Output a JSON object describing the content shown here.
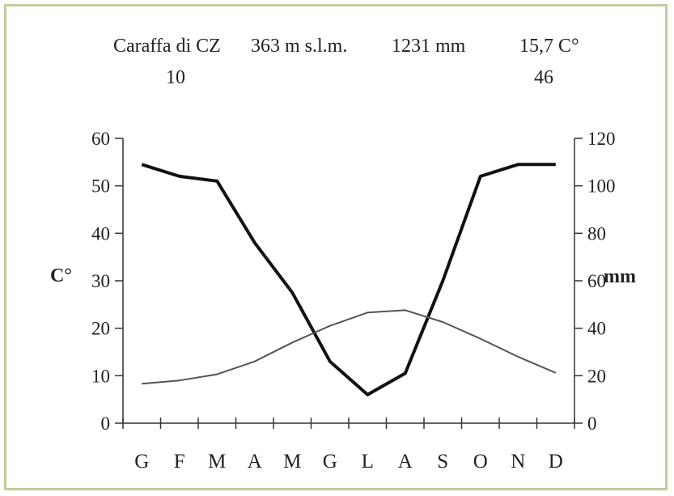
{
  "chart_data": {
    "type": "line",
    "title_line1": {
      "station": "Caraffa di CZ",
      "altitude": "363 m s.l.m.",
      "precip_total": "1231 mm",
      "temp_mean": "15,7 C°"
    },
    "title_line2": {
      "left": "10",
      "right": "46"
    },
    "categories": [
      "G",
      "F",
      "M",
      "A",
      "M",
      "G",
      "L",
      "A",
      "S",
      "O",
      "N",
      "D"
    ],
    "left_axis": {
      "label": "C°",
      "min": 0,
      "max": 60,
      "ticks": [
        "0",
        "10",
        "20",
        "30",
        "40",
        "50",
        "60"
      ]
    },
    "right_axis": {
      "label": "mm",
      "min": 0,
      "max": 120,
      "ticks": [
        "0",
        "20",
        "40",
        "60",
        "80",
        "100",
        "120"
      ]
    },
    "series": [
      {
        "axis": "right",
        "style": "thick",
        "color": "#111111",
        "values": [
          109,
          104,
          102,
          76,
          55,
          26,
          12,
          21,
          60,
          104,
          109,
          109
        ]
      },
      {
        "axis": "left",
        "style": "thin",
        "color": "#555555",
        "values": [
          8.3,
          9.0,
          10.3,
          13.0,
          17.0,
          20.5,
          23.3,
          23.8,
          21.3,
          17.8,
          14.0,
          10.6
        ]
      }
    ],
    "grid": false,
    "legend": "none"
  }
}
